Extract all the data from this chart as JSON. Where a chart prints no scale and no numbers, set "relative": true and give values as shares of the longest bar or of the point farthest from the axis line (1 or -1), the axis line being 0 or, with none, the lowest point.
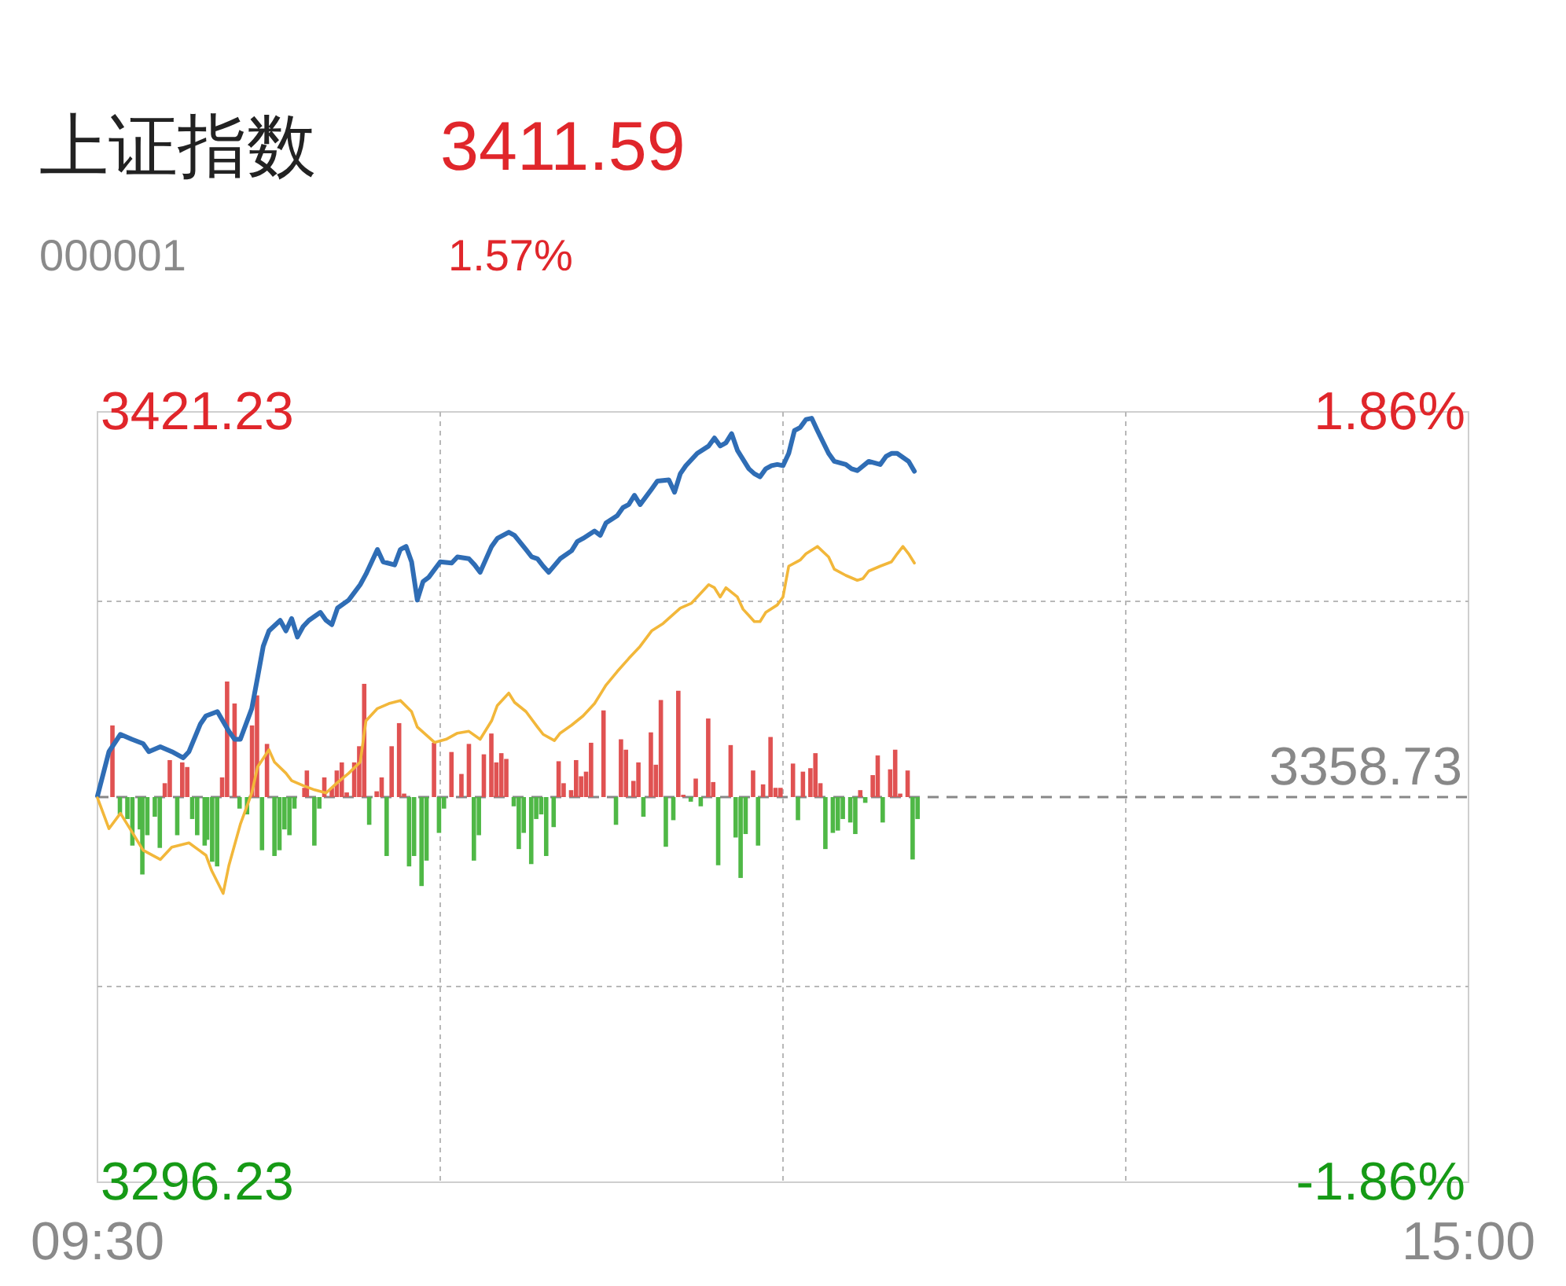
{
  "chart_data": [
    {
      "type": "line",
      "title": "上证指数",
      "annotations": [
        "3411.59",
        "000001",
        "1.57%"
      ],
      "xlim": [
        9.5,
        15
      ],
      "xticks": [
        {
          "value": 9.5,
          "label": "09:30"
        },
        {
          "value": 10.875,
          "label": null
        },
        {
          "value": 12.25,
          "label": null
        },
        {
          "value": 13.625,
          "label": null
        },
        {
          "value": 15,
          "label": "15:00"
        }
      ],
      "ylim": [
        3296.23,
        3421.23
      ],
      "yticks": [
        3421.23,
        {
          "value": 3390.48,
          "label": null
        },
        {
          "value": 3327.98,
          "label": null
        },
        3296.23
      ],
      "y2lim": [
        -1.86,
        1.86
      ],
      "y2ticks": [
        {
          "value": 1.86,
          "label": "1.86%"
        },
        {
          "value": -1.86,
          "label": "-1.86%"
        }
      ],
      "grid": true,
      "ref_lines": [
        {
          "axis": "y",
          "value": 3358.73,
          "label": "3358.73",
          "color": "#888888",
          "line_style": "dashed"
        }
      ],
      "series": [
        {
          "color": "#2f6db5",
          "x": [
            9.5,
            9.546,
            9.592,
            9.638,
            9.683,
            9.706,
            9.752,
            9.798,
            9.844,
            9.867,
            9.913,
            9.935,
            9.981,
            10.027,
            10.05,
            10.073,
            10.119,
            10.142,
            10.165,
            10.188,
            10.233,
            10.256,
            10.279,
            10.302,
            10.325,
            10.348,
            10.394,
            10.417,
            10.44,
            10.463,
            10.508,
            10.554,
            10.577,
            10.623,
            10.646,
            10.692,
            10.715,
            10.738,
            10.76,
            10.783,
            10.806,
            10.829,
            10.875,
            10.921,
            10.944,
            10.99,
            11.013,
            11.035,
            11.081,
            11.104,
            11.15,
            11.173,
            11.219,
            11.242,
            11.265,
            11.288,
            11.31,
            11.356,
            11.402,
            11.425,
            11.448,
            11.494,
            11.517,
            11.54,
            11.585,
            11.608,
            11.631,
            11.654,
            11.677,
            11.723,
            11.746,
            11.792,
            11.815,
            11.838,
            11.86,
            11.906,
            11.952,
            11.975,
            11.998,
            12.021,
            12.044,
            12.067,
            12.113,
            12.135,
            12.158,
            12.181,
            12.204,
            12.227,
            12.25,
            12.273,
            12.296,
            12.319,
            12.342,
            12.365,
            12.388,
            12.433,
            12.456,
            12.502,
            12.525,
            12.548,
            12.594,
            12.64,
            12.663,
            12.685,
            12.708,
            12.754,
            12.777
          ],
          "values": [
            3358.9,
            3366.1,
            3368.9,
            3368.1,
            3367.4,
            3366.1,
            3366.9,
            3366.1,
            3365.1,
            3366.1,
            3370.6,
            3371.9,
            3372.6,
            3369.4,
            3368.1,
            3368.1,
            3373.1,
            3378.1,
            3383.2,
            3385.7,
            3387.4,
            3385.7,
            3387.7,
            3384.7,
            3386.4,
            3387.4,
            3388.7,
            3387.4,
            3386.7,
            3389.4,
            3390.7,
            3393.2,
            3394.9,
            3398.9,
            3396.9,
            3396.4,
            3398.9,
            3399.4,
            3396.9,
            3390.7,
            3393.7,
            3394.4,
            3396.9,
            3396.7,
            3397.7,
            3397.4,
            3396.4,
            3395.2,
            3399.4,
            3400.7,
            3401.7,
            3401.2,
            3398.9,
            3397.7,
            3397.4,
            3396.2,
            3395.2,
            3397.4,
            3398.7,
            3400.2,
            3400.7,
            3401.9,
            3401.2,
            3403.2,
            3404.4,
            3405.7,
            3406.2,
            3407.7,
            3406.2,
            3408.7,
            3410.0,
            3410.2,
            3408.2,
            3411.2,
            3412.5,
            3414.5,
            3415.7,
            3417.0,
            3415.7,
            3416.2,
            3417.7,
            3415.0,
            3412.0,
            3411.2,
            3410.7,
            3412.0,
            3412.5,
            3412.7,
            3412.5,
            3414.5,
            3418.2,
            3418.7,
            3420.0,
            3420.2,
            3418.2,
            3414.5,
            3413.2,
            3412.7,
            3412.0,
            3411.7,
            3413.2,
            3412.7,
            3414.0,
            3414.5,
            3414.5,
            3413.2,
            3411.6
          ]
        },
        {
          "color": "#f2b73a",
          "x": [
            9.5,
            9.546,
            9.592,
            9.638,
            9.683,
            9.752,
            9.798,
            9.867,
            9.935,
            9.958,
            10.004,
            10.027,
            10.073,
            10.119,
            10.142,
            10.188,
            10.21,
            10.256,
            10.279,
            10.325,
            10.371,
            10.417,
            10.463,
            10.508,
            10.554,
            10.577,
            10.623,
            10.669,
            10.715,
            10.76,
            10.783,
            10.852,
            10.898,
            10.944,
            10.99,
            11.035,
            11.081,
            11.104,
            11.15,
            11.173,
            11.219,
            11.265,
            11.288,
            11.333,
            11.356,
            11.402,
            11.448,
            11.494,
            11.54,
            11.585,
            11.631,
            11.677,
            11.723,
            11.769,
            11.838,
            11.883,
            11.906,
            11.952,
            11.975,
            11.998,
            12.021,
            12.067,
            12.09,
            12.113,
            12.135,
            12.158,
            12.181,
            12.227,
            12.25,
            12.273,
            12.319,
            12.342,
            12.388,
            12.433,
            12.456,
            12.502,
            12.548,
            12.571,
            12.594,
            12.64,
            12.685,
            12.708,
            12.731,
            12.754,
            12.777
          ],
          "values": [
            3358.6,
            3353.6,
            3356.1,
            3353.1,
            3350.1,
            3348.6,
            3350.6,
            3351.3,
            3349.3,
            3346.8,
            3343.1,
            3347.6,
            3354.3,
            3359.4,
            3363.6,
            3366.4,
            3364.4,
            3362.6,
            3361.4,
            3360.6,
            3359.9,
            3359.4,
            3361.1,
            3362.6,
            3364.4,
            3371.1,
            3373.1,
            3373.9,
            3374.4,
            3372.6,
            3370.1,
            3367.6,
            3368.1,
            3369.1,
            3369.4,
            3368.1,
            3371.1,
            3373.6,
            3375.6,
            3374.1,
            3372.6,
            3370.1,
            3368.9,
            3367.9,
            3369.1,
            3370.4,
            3371.9,
            3373.9,
            3376.9,
            3379.1,
            3381.2,
            3383.2,
            3385.7,
            3386.9,
            3389.4,
            3390.2,
            3391.2,
            3393.2,
            3392.7,
            3391.2,
            3392.7,
            3391.2,
            3389.2,
            3388.2,
            3387.2,
            3387.2,
            3388.7,
            3389.9,
            3391.2,
            3396.2,
            3397.2,
            3398.2,
            3399.4,
            3397.7,
            3395.7,
            3394.7,
            3393.9,
            3394.2,
            3395.4,
            3396.2,
            3396.9,
            3398.2,
            3399.4,
            3398.2,
            3396.7
          ]
        }
      ]
    },
    {
      "type": "bar",
      "relative": true,
      "xlim": [
        9.5,
        15
      ],
      "series": [
        {
          "color": "#e05252",
          "x": [
            9.56,
            9.77,
            9.79,
            9.84,
            9.86,
            10.0,
            10.02,
            10.05,
            10.12,
            10.14,
            10.18,
            10.33,
            10.34,
            10.41,
            10.44,
            10.46,
            10.48,
            10.5,
            10.53,
            10.55,
            10.57,
            10.62,
            10.64,
            10.68,
            10.71,
            10.73,
            10.85,
            10.92,
            10.96,
            10.99,
            11.05,
            11.08,
            11.1,
            11.12,
            11.14,
            11.35,
            11.37,
            11.4,
            11.42,
            11.44,
            11.46,
            11.48,
            11.53,
            11.6,
            11.62,
            11.65,
            11.67,
            11.72,
            11.74,
            11.76,
            11.83,
            11.85,
            11.9,
            11.95,
            11.97,
            12.04,
            12.13,
            12.17,
            12.2,
            12.22,
            12.24,
            12.29,
            12.33,
            12.36,
            12.38,
            12.4,
            12.56,
            12.61,
            12.63,
            12.68,
            12.7,
            12.72,
            12.75
          ],
          "values": [
            0.62,
            0.12,
            0.32,
            0.3,
            0.26,
            0.17,
            1.0,
            0.81,
            0.62,
            0.88,
            0.46,
            0.08,
            0.23,
            0.17,
            0.08,
            0.23,
            0.3,
            0.04,
            0.3,
            0.44,
            0.98,
            0.05,
            0.17,
            0.44,
            0.64,
            0.03,
            0.47,
            0.39,
            0.2,
            0.46,
            0.37,
            0.55,
            0.3,
            0.38,
            0.33,
            0.31,
            0.12,
            0.06,
            0.32,
            0.18,
            0.22,
            0.47,
            0.75,
            0.5,
            0.41,
            0.14,
            0.3,
            0.56,
            0.28,
            0.84,
            0.92,
            0.02,
            0.16,
            0.68,
            0.13,
            0.45,
            0.23,
            0.11,
            0.52,
            0.08,
            0.08,
            0.29,
            0.22,
            0.25,
            0.38,
            0.12,
            0.06,
            0.19,
            0.36,
            0.24,
            0.41,
            0.03,
            0.23
          ]
        },
        {
          "color": "#4fb846",
          "x": [
            9.59,
            9.62,
            9.64,
            9.67,
            9.68,
            9.7,
            9.73,
            9.75,
            9.82,
            9.88,
            9.9,
            9.93,
            9.94,
            9.96,
            9.98,
            10.07,
            10.1,
            10.16,
            10.21,
            10.23,
            10.25,
            10.27,
            10.29,
            10.37,
            10.39,
            10.59,
            10.66,
            10.75,
            10.77,
            10.8,
            10.82,
            10.87,
            10.89,
            11.01,
            11.03,
            11.17,
            11.19,
            11.21,
            11.24,
            11.26,
            11.28,
            11.3,
            11.33,
            11.58,
            11.69,
            11.78,
            11.81,
            11.88,
            11.92,
            11.99,
            12.06,
            12.08,
            12.1,
            12.15,
            12.31,
            12.42,
            12.45,
            12.47,
            12.49,
            12.52,
            12.54,
            12.58,
            12.65,
            12.77,
            12.79
          ],
          "values": [
            -0.15,
            -0.19,
            -0.42,
            -0.28,
            -0.67,
            -0.33,
            -0.17,
            -0.44,
            -0.33,
            -0.19,
            -0.33,
            -0.42,
            -0.37,
            -0.56,
            -0.6,
            -0.1,
            -0.15,
            -0.46,
            -0.51,
            -0.46,
            -0.28,
            -0.33,
            -0.1,
            -0.42,
            -0.1,
            -0.24,
            -0.51,
            -0.6,
            -0.51,
            -0.77,
            -0.55,
            -0.31,
            -0.1,
            -0.55,
            -0.33,
            -0.08,
            -0.45,
            -0.31,
            -0.58,
            -0.19,
            -0.15,
            -0.51,
            -0.26,
            -0.24,
            -0.17,
            -0.43,
            -0.2,
            -0.04,
            -0.08,
            -0.59,
            -0.35,
            -0.7,
            -0.32,
            -0.42,
            -0.2,
            -0.45,
            -0.31,
            -0.29,
            -0.19,
            -0.22,
            -0.32,
            -0.05,
            -0.22,
            -0.54,
            -0.19
          ]
        }
      ]
    }
  ]
}
